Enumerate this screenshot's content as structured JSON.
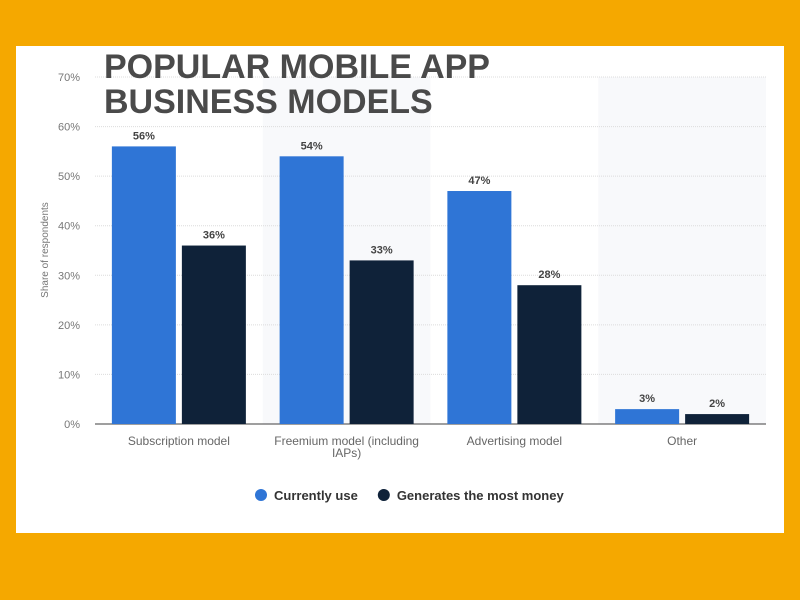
{
  "chart_data": {
    "type": "bar",
    "title": "POPULAR MOBILE APP\nBUSINESS MODELS",
    "ylabel": "Share of respondents",
    "xlabel": "",
    "ylim": [
      0,
      70
    ],
    "yticks": [
      "0%",
      "10%",
      "20%",
      "30%",
      "40%",
      "50%",
      "60%",
      "70%"
    ],
    "categories": [
      "Subscription model",
      "Freemium model (including IAPs)",
      "Advertising model",
      "Other"
    ],
    "series": [
      {
        "name": "Currently use",
        "values": [
          56,
          54,
          47,
          3
        ],
        "color": "#2f75d6"
      },
      {
        "name": "Generates the most money",
        "values": [
          36,
          33,
          28,
          2
        ],
        "color": "#0f2239"
      }
    ],
    "grid": true,
    "legend": "bottom",
    "data_labels": true
  },
  "colors": {
    "background": "#f5a800",
    "panel": "#ffffff",
    "title": "#4a4a4a"
  }
}
